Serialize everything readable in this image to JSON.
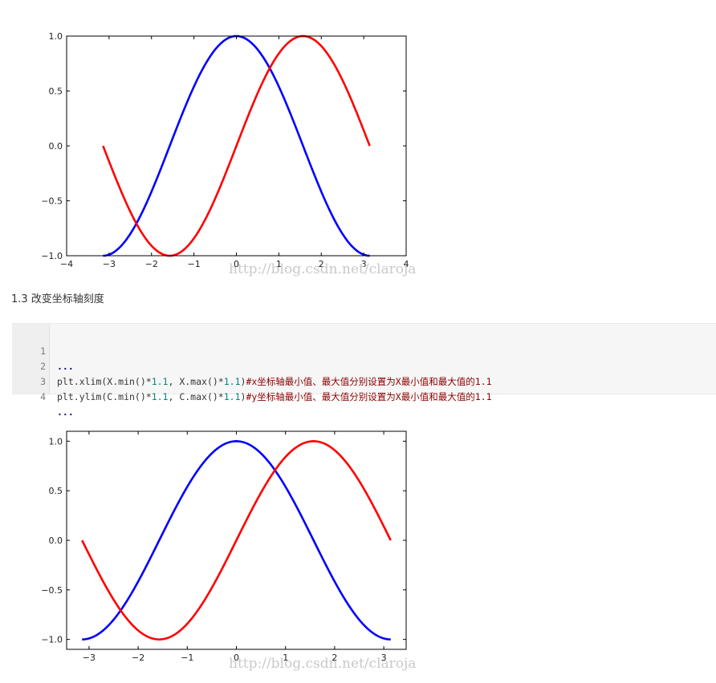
{
  "section": {
    "heading": "1.3 改变坐标轴刻度"
  },
  "code": {
    "lines": [
      {
        "num": "1",
        "dots": "..."
      },
      {
        "num": "2",
        "pre": "plt.xlim(X.min()*",
        "n1": "1.1",
        "mid": ", X.max()*",
        "n2": "1.1",
        "post": ")",
        "comment": "#x坐标轴最小值、最大值分别设置为X最小值和最大值的",
        "tail": "1.1"
      },
      {
        "num": "3",
        "pre": "plt.ylim(C.min()*",
        "n1": "1.1",
        "mid": ", C.max()*",
        "n2": "1.1",
        "post": ")",
        "comment": "#y坐标轴最小值、最大值分别设置为X最小值和最大值的",
        "tail": "1.1"
      },
      {
        "num": "4",
        "dots": "..."
      }
    ]
  },
  "watermark": "http://blog.csdn.net/claroja",
  "chart_data": [
    {
      "type": "line",
      "xlim": [
        -4,
        4
      ],
      "ylim": [
        -1.0,
        1.0
      ],
      "xticks": [
        -4,
        -3,
        -2,
        -1,
        0,
        1,
        2,
        3,
        4
      ],
      "xtick_labels": [
        "−4",
        "−3",
        "−2",
        "−1",
        "0",
        "1",
        "2",
        "3",
        "4"
      ],
      "yticks": [
        -1.0,
        -0.5,
        0.0,
        0.5,
        1.0
      ],
      "ytick_labels": [
        "−1.0",
        "−0.5",
        "0.0",
        "0.5",
        "1.0"
      ],
      "grid": false,
      "series": [
        {
          "function": "cos",
          "color": "#0000ff",
          "x": [
            -3.14159,
            -2.75,
            -2.36,
            -1.96,
            -1.57,
            -1.18,
            -0.79,
            -0.39,
            0,
            0.39,
            0.79,
            1.18,
            1.57,
            1.96,
            2.36,
            2.75,
            3.14159
          ],
          "y": [
            -1.0,
            -0.92,
            -0.71,
            -0.38,
            0.0,
            0.38,
            0.71,
            0.92,
            1.0,
            0.92,
            0.71,
            0.38,
            0.0,
            -0.38,
            -0.71,
            -0.92,
            -1.0
          ]
        },
        {
          "function": "sin",
          "color": "#ff0000",
          "x": [
            -3.14159,
            -2.75,
            -2.36,
            -1.96,
            -1.57,
            -1.18,
            -0.79,
            -0.39,
            0,
            0.39,
            0.79,
            1.18,
            1.57,
            1.96,
            2.36,
            2.75,
            3.14159
          ],
          "y": [
            0.0,
            -0.38,
            -0.71,
            -0.92,
            -1.0,
            -0.92,
            -0.71,
            -0.38,
            0.0,
            0.38,
            0.71,
            0.92,
            1.0,
            0.92,
            0.71,
            0.38,
            0.0
          ]
        }
      ]
    },
    {
      "type": "line",
      "xlim": [
        -3.456,
        3.456
      ],
      "ylim": [
        -1.1,
        1.1
      ],
      "xticks": [
        -3,
        -2,
        -1,
        0,
        1,
        2,
        3
      ],
      "xtick_labels": [
        "−3",
        "−2",
        "−1",
        "0",
        "1",
        "2",
        "3"
      ],
      "yticks": [
        -1.0,
        -0.5,
        0.0,
        0.5,
        1.0
      ],
      "ytick_labels": [
        "−1.0",
        "−0.5",
        "0.0",
        "0.5",
        "1.0"
      ],
      "grid": false,
      "series": [
        {
          "function": "cos",
          "color": "#0000ff",
          "x": [
            -3.14159,
            -2.75,
            -2.36,
            -1.96,
            -1.57,
            -1.18,
            -0.79,
            -0.39,
            0,
            0.39,
            0.79,
            1.18,
            1.57,
            1.96,
            2.36,
            2.75,
            3.14159
          ],
          "y": [
            -1.0,
            -0.92,
            -0.71,
            -0.38,
            0.0,
            0.38,
            0.71,
            0.92,
            1.0,
            0.92,
            0.71,
            0.38,
            0.0,
            -0.38,
            -0.71,
            -0.92,
            -1.0
          ]
        },
        {
          "function": "sin",
          "color": "#ff0000",
          "x": [
            -3.14159,
            -2.75,
            -2.36,
            -1.96,
            -1.57,
            -1.18,
            -0.79,
            -0.39,
            0,
            0.39,
            0.79,
            1.18,
            1.57,
            1.96,
            2.36,
            2.75,
            3.14159
          ],
          "y": [
            0.0,
            -0.38,
            -0.71,
            -0.92,
            -1.0,
            -0.92,
            -0.71,
            -0.38,
            0.0,
            0.38,
            0.71,
            0.92,
            1.0,
            0.92,
            0.71,
            0.38,
            0.0
          ]
        }
      ]
    }
  ]
}
